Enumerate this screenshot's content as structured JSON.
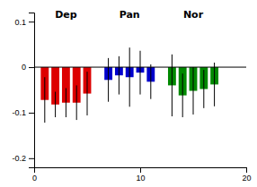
{
  "chart_data": {
    "type": "bar",
    "series": [
      {
        "color": "#dd0000",
        "x": [
          1,
          2,
          3,
          4,
          5
        ],
        "values": [
          -0.072,
          -0.082,
          -0.078,
          -0.078,
          -0.058
        ],
        "errors": [
          0.05,
          0.028,
          0.032,
          0.038,
          0.048
        ]
      },
      {
        "color": "#0000cc",
        "x": [
          7,
          8,
          9,
          10,
          11
        ],
        "values": [
          -0.028,
          -0.018,
          -0.022,
          -0.012,
          -0.032
        ],
        "errors": [
          0.048,
          0.042,
          0.065,
          0.048,
          0.038
        ]
      },
      {
        "color": "#008800",
        "x": [
          13,
          14,
          15,
          16,
          17
        ],
        "values": [
          -0.04,
          -0.062,
          -0.052,
          -0.048,
          -0.038
        ],
        "errors": [
          0.068,
          0.048,
          0.052,
          0.042,
          0.048
        ]
      }
    ],
    "annotations": [
      {
        "text": "Dep",
        "x": 3.0,
        "y": 0.109
      },
      {
        "text": "Pan",
        "x": 9.0,
        "y": 0.109
      },
      {
        "text": "Nor",
        "x": 15.0,
        "y": 0.109
      }
    ],
    "hline": 0,
    "xlim": [
      0,
      20
    ],
    "xticks": [
      0,
      10,
      20
    ],
    "ylim": [
      -0.22,
      0.12
    ],
    "yticks": [
      0.1,
      0,
      -0.1,
      -0.2
    ],
    "grid": false
  }
}
